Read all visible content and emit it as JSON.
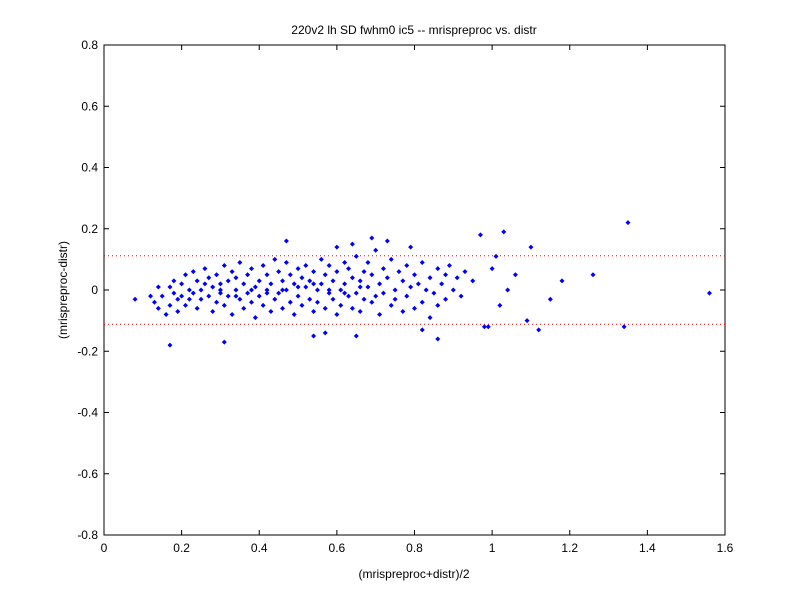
{
  "chart_data": {
    "type": "scatter",
    "title": "220v2 lh SD fwhm0 ic5 -- mrispreproc vs. distr",
    "xlabel": "(mrispreproc+distr)/2",
    "ylabel": "(mrispreproc-distr)",
    "xlim": [
      0,
      1.6
    ],
    "ylim": [
      -0.8,
      0.8
    ],
    "xticks": [
      0,
      0.2,
      0.4,
      0.6,
      0.8,
      1,
      1.2,
      1.4,
      1.6
    ],
    "yticks": [
      -0.8,
      -0.6,
      -0.4,
      -0.2,
      0,
      0.2,
      0.4,
      0.6,
      0.8
    ],
    "xtick_labels": [
      "0",
      "0.2",
      "0.4",
      "0.6",
      "0.8",
      "1",
      "1.2",
      "1.4",
      "1.6"
    ],
    "ytick_labels": [
      "-0.8",
      "-0.6",
      "-0.4",
      "-0.2",
      "0",
      "0.2",
      "0.4",
      "0.6",
      "0.8"
    ],
    "grid": false,
    "marker_color": "#0000ff",
    "reference_line_color": "#ff0000",
    "reference_lines_y": [
      0.112,
      -0.112
    ],
    "series": [
      {
        "values": [
          [
            0.08,
            -0.03
          ],
          [
            0.12,
            -0.02
          ],
          [
            0.13,
            -0.04
          ],
          [
            0.14,
            0.01
          ],
          [
            0.14,
            -0.06
          ],
          [
            0.15,
            -0.02
          ],
          [
            0.16,
            -0.08
          ],
          [
            0.17,
            0.01
          ],
          [
            0.17,
            -0.05
          ],
          [
            0.18,
            0.03
          ],
          [
            0.18,
            -0.01
          ],
          [
            0.19,
            -0.03
          ],
          [
            0.19,
            -0.07
          ],
          [
            0.2,
            0.02
          ],
          [
            0.2,
            -0.02
          ],
          [
            0.21,
            -0.05
          ],
          [
            0.21,
            0.05
          ],
          [
            0.22,
            0.0
          ],
          [
            0.22,
            -0.03
          ],
          [
            0.23,
            0.06
          ],
          [
            0.23,
            -0.01
          ],
          [
            0.24,
            0.03
          ],
          [
            0.24,
            -0.06
          ],
          [
            0.25,
            0.0
          ],
          [
            0.25,
            -0.03
          ],
          [
            0.26,
            0.07
          ],
          [
            0.26,
            0.02
          ],
          [
            0.27,
            -0.02
          ],
          [
            0.27,
            0.04
          ],
          [
            0.28,
            -0.07
          ],
          [
            0.28,
            0.01
          ],
          [
            0.29,
            0.05
          ],
          [
            0.29,
            -0.04
          ],
          [
            0.3,
            0.02
          ],
          [
            0.3,
            -0.01
          ],
          [
            0.31,
            0.08
          ],
          [
            0.31,
            -0.05
          ],
          [
            0.32,
            0.03
          ],
          [
            0.32,
            -0.02
          ],
          [
            0.33,
            0.06
          ],
          [
            0.33,
            -0.08
          ],
          [
            0.34,
            0.0
          ],
          [
            0.34,
            0.04
          ],
          [
            0.35,
            -0.03
          ],
          [
            0.35,
            0.09
          ],
          [
            0.36,
            0.02
          ],
          [
            0.36,
            -0.06
          ],
          [
            0.37,
            0.05
          ],
          [
            0.37,
            -0.01
          ],
          [
            0.38,
            0.07
          ],
          [
            0.38,
            -0.04
          ],
          [
            0.39,
            0.01
          ],
          [
            0.39,
            -0.09
          ],
          [
            0.4,
            0.03
          ],
          [
            0.4,
            -0.02
          ],
          [
            0.41,
            0.08
          ],
          [
            0.41,
            -0.05
          ],
          [
            0.42,
            0.0
          ],
          [
            0.42,
            0.05
          ],
          [
            0.43,
            -0.07
          ],
          [
            0.43,
            0.02
          ],
          [
            0.44,
            0.1
          ],
          [
            0.44,
            -0.03
          ],
          [
            0.45,
            0.06
          ],
          [
            0.45,
            -0.01
          ],
          [
            0.46,
            0.03
          ],
          [
            0.46,
            -0.06
          ],
          [
            0.47,
            0.09
          ],
          [
            0.47,
            0.0
          ],
          [
            0.48,
            -0.04
          ],
          [
            0.48,
            0.05
          ],
          [
            0.49,
            0.02
          ],
          [
            0.49,
            -0.08
          ],
          [
            0.5,
            0.07
          ],
          [
            0.5,
            -0.02
          ],
          [
            0.51,
            0.04
          ],
          [
            0.51,
            -0.05
          ],
          [
            0.52,
            0.01
          ],
          [
            0.52,
            0.08
          ],
          [
            0.53,
            -0.03
          ],
          [
            0.53,
            0.03
          ],
          [
            0.54,
            -0.07
          ],
          [
            0.54,
            0.06
          ],
          [
            0.55,
            0.0
          ],
          [
            0.55,
            -0.04
          ],
          [
            0.56,
            0.1
          ],
          [
            0.56,
            0.02
          ],
          [
            0.57,
            -0.06
          ],
          [
            0.57,
            0.05
          ],
          [
            0.58,
            -0.01
          ],
          [
            0.58,
            0.08
          ],
          [
            0.59,
            -0.03
          ],
          [
            0.59,
            0.03
          ],
          [
            0.6,
            -0.08
          ],
          [
            0.6,
            0.06
          ],
          [
            0.61,
            0.0
          ],
          [
            0.61,
            -0.05
          ],
          [
            0.62,
            0.09
          ],
          [
            0.62,
            0.02
          ],
          [
            0.63,
            -0.02
          ],
          [
            0.63,
            0.07
          ],
          [
            0.64,
            -0.06
          ],
          [
            0.64,
            0.04
          ],
          [
            0.65,
            -0.01
          ],
          [
            0.65,
            0.11
          ],
          [
            0.66,
            0.03
          ],
          [
            0.66,
            -0.07
          ],
          [
            0.67,
            0.06
          ],
          [
            0.67,
            -0.03
          ],
          [
            0.68,
            0.01
          ],
          [
            0.68,
            0.09
          ],
          [
            0.69,
            -0.04
          ],
          [
            0.69,
            0.05
          ],
          [
            0.7,
            -0.02
          ],
          [
            0.7,
            0.13
          ],
          [
            0.71,
            0.02
          ],
          [
            0.71,
            -0.08
          ],
          [
            0.72,
            0.07
          ],
          [
            0.72,
            -0.01
          ],
          [
            0.73,
            0.04
          ],
          [
            0.74,
            -0.05
          ],
          [
            0.74,
            0.1
          ],
          [
            0.75,
            0.0
          ],
          [
            0.75,
            -0.03
          ],
          [
            0.76,
            0.06
          ],
          [
            0.77,
            -0.07
          ],
          [
            0.77,
            0.03
          ],
          [
            0.78,
            0.08
          ],
          [
            0.78,
            -0.02
          ],
          [
            0.79,
            0.01
          ],
          [
            0.8,
            -0.06
          ],
          [
            0.8,
            0.05
          ],
          [
            0.81,
            0.02
          ],
          [
            0.82,
            -0.04
          ],
          [
            0.82,
            0.09
          ],
          [
            0.83,
            0.0
          ],
          [
            0.84,
            -0.09
          ],
          [
            0.84,
            0.04
          ],
          [
            0.85,
            -0.01
          ],
          [
            0.86,
            0.07
          ],
          [
            0.86,
            -0.05
          ],
          [
            0.87,
            0.02
          ],
          [
            0.88,
            0.05
          ],
          [
            0.88,
            -0.03
          ],
          [
            0.89,
            0.08
          ],
          [
            0.9,
            0.0
          ],
          [
            0.91,
            0.04
          ],
          [
            0.92,
            -0.02
          ],
          [
            0.93,
            0.06
          ],
          [
            0.95,
            0.03
          ],
          [
            0.3,
            0.0
          ],
          [
            0.34,
            -0.02
          ],
          [
            0.38,
            0.0
          ],
          [
            0.42,
            -0.01
          ],
          [
            0.46,
            0.0
          ],
          [
            0.5,
            0.01
          ],
          [
            0.54,
            0.02
          ],
          [
            0.58,
            0.0
          ],
          [
            0.62,
            -0.01
          ],
          [
            0.66,
            0.01
          ],
          [
            0.31,
            -0.17
          ],
          [
            0.17,
            -0.18
          ],
          [
            0.47,
            0.16
          ],
          [
            0.64,
            0.15
          ],
          [
            0.69,
            0.17
          ],
          [
            0.73,
            0.16
          ],
          [
            0.6,
            0.14
          ],
          [
            0.79,
            0.14
          ],
          [
            0.54,
            -0.15
          ],
          [
            0.65,
            -0.15
          ],
          [
            0.57,
            -0.14
          ],
          [
            0.86,
            -0.16
          ],
          [
            0.82,
            -0.13
          ],
          [
            0.97,
            0.18
          ],
          [
            0.98,
            -0.12
          ],
          [
            0.99,
            -0.12
          ],
          [
            1.03,
            0.19
          ],
          [
            1.1,
            0.14
          ],
          [
            1.01,
            0.11
          ],
          [
            1.06,
            0.05
          ],
          [
            1.0,
            0.07
          ],
          [
            1.04,
            0.0
          ],
          [
            1.02,
            -0.05
          ],
          [
            1.09,
            -0.1
          ],
          [
            1.12,
            -0.13
          ],
          [
            1.15,
            -0.03
          ],
          [
            1.18,
            0.03
          ],
          [
            1.26,
            0.05
          ],
          [
            1.34,
            -0.12
          ],
          [
            1.35,
            0.22
          ],
          [
            1.56,
            -0.01
          ]
        ]
      }
    ]
  }
}
